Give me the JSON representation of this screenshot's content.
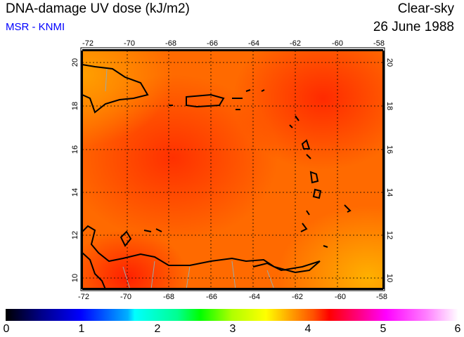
{
  "header": {
    "title": "DNA-damage UV dose (kJ/m2)",
    "source": "MSR - KNMI",
    "condition": "Clear-sky",
    "date": "26 June 1988"
  },
  "map": {
    "lon_ticks": [
      "-72",
      "-70",
      "-68",
      "-66",
      "-64",
      "-62",
      "-60",
      "-58"
    ],
    "lat_ticks": [
      "20",
      "18",
      "16",
      "14",
      "12",
      "10"
    ],
    "region": "Caribbean",
    "value_range_approx": [
      3.8,
      4.4
    ]
  },
  "colorbar": {
    "labels": [
      "0",
      "1",
      "2",
      "3",
      "4",
      "5",
      "6"
    ],
    "min": 0,
    "max": 6
  }
}
